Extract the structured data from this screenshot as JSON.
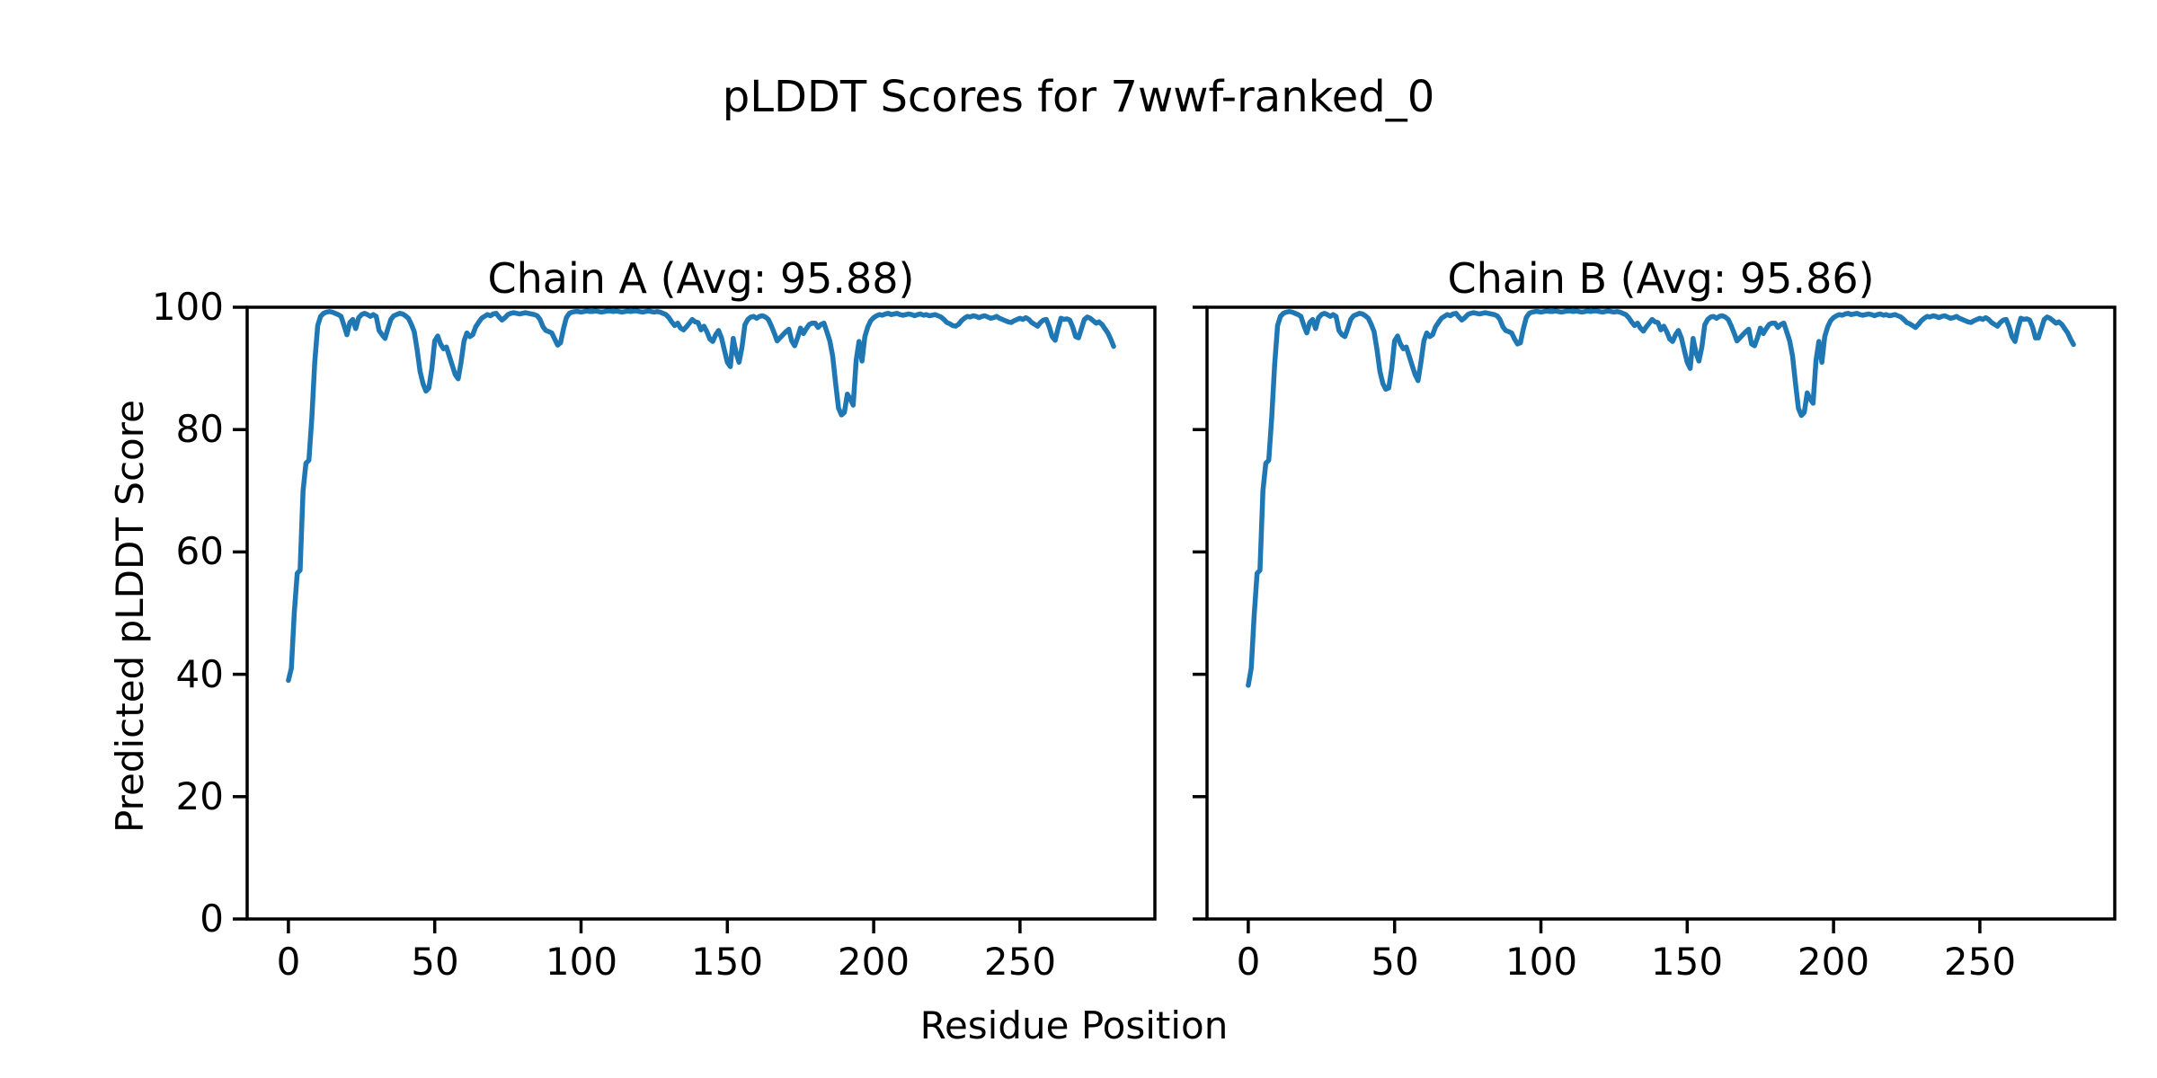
{
  "figure": {
    "suptitle": "pLDDT Scores for 7wwf-ranked_0",
    "xlabel": "Residue Position",
    "ylabel": "Predicted pLDDT Score",
    "text_color": "#000000",
    "background_color": "#ffffff",
    "line_color": "#1f77b4",
    "spine_color": "#000000"
  },
  "chart_data": [
    {
      "type": "line",
      "title": "Chain A (Avg: 95.88)",
      "avg": 95.88,
      "x_start": 0,
      "x_step": 1,
      "xlim": [
        -14.1,
        296.1
      ],
      "ylim": [
        0,
        100
      ],
      "x_ticks": [
        0,
        50,
        100,
        150,
        200,
        250
      ],
      "y_ticks": [
        0,
        20,
        40,
        60,
        80,
        100
      ],
      "show_y_tick_labels": true,
      "grid": false,
      "legend": false,
      "values": [
        39.0,
        41.0,
        50.0,
        56.5,
        57.0,
        70.0,
        74.5,
        75.0,
        82.0,
        91.0,
        97.0,
        98.5,
        99.0,
        99.2,
        99.3,
        99.2,
        99.0,
        98.8,
        98.5,
        97.0,
        95.5,
        97.5,
        98.0,
        96.5,
        98.3,
        98.8,
        99.0,
        98.8,
        98.5,
        98.8,
        98.5,
        96.2,
        95.5,
        94.9,
        96.5,
        98.0,
        98.6,
        98.8,
        99.0,
        98.9,
        98.6,
        98.2,
        97.2,
        96.0,
        93.0,
        89.5,
        87.5,
        86.3,
        86.8,
        90.0,
        94.5,
        95.3,
        94.0,
        93.2,
        93.5,
        92.0,
        90.5,
        89.0,
        88.3,
        91.0,
        94.5,
        95.8,
        95.2,
        95.5,
        96.8,
        97.5,
        98.2,
        98.5,
        98.8,
        98.6,
        98.9,
        99.0,
        98.4,
        97.9,
        98.3,
        98.8,
        99.0,
        99.1,
        99.0,
        98.9,
        99.0,
        99.1,
        99.0,
        98.9,
        98.8,
        98.6,
        98.0,
        96.8,
        96.2,
        96.0,
        95.8,
        94.8,
        93.8,
        94.2,
        96.5,
        98.3,
        99.0,
        99.2,
        99.3,
        99.3,
        99.2,
        99.3,
        99.4,
        99.3,
        99.3,
        99.4,
        99.3,
        99.2,
        99.3,
        99.4,
        99.4,
        99.3,
        99.4,
        99.3,
        99.2,
        99.3,
        99.4,
        99.3,
        99.4,
        99.4,
        99.3,
        99.2,
        99.3,
        99.4,
        99.3,
        99.2,
        99.3,
        99.2,
        99.0,
        98.8,
        98.3,
        97.6,
        97.0,
        97.4,
        96.6,
        96.3,
        96.8,
        97.4,
        98.0,
        97.6,
        97.5,
        96.3,
        96.9,
        96.0,
        94.8,
        94.4,
        95.5,
        96.2,
        95.0,
        93.0,
        91.0,
        90.3,
        94.9,
        92.5,
        91.0,
        93.5,
        97.1,
        98.0,
        98.4,
        98.5,
        98.2,
        98.5,
        98.6,
        98.4,
        98.0,
        97.0,
        95.8,
        94.5,
        95.0,
        95.5,
        96.0,
        96.4,
        94.5,
        93.7,
        95.0,
        96.6,
        95.7,
        96.5,
        97.2,
        97.4,
        97.4,
        96.7,
        97.2,
        97.4,
        96.0,
        94.5,
        92.0,
        87.5,
        83.5,
        82.4,
        82.8,
        85.8,
        85.0,
        84.0,
        91.3,
        94.4,
        91.2,
        95.2,
        96.8,
        97.8,
        98.3,
        98.6,
        98.8,
        98.7,
        98.9,
        99.0,
        98.8,
        98.9,
        99.0,
        98.8,
        98.7,
        98.8,
        98.9,
        98.8,
        98.6,
        98.8,
        98.9,
        98.7,
        98.8,
        98.6,
        98.7,
        98.8,
        98.6,
        98.4,
        98.0,
        97.5,
        97.3,
        97.0,
        96.9,
        97.2,
        97.8,
        98.2,
        98.5,
        98.4,
        98.6,
        98.5,
        98.3,
        98.5,
        98.6,
        98.4,
        98.2,
        98.3,
        98.5,
        98.2,
        98.0,
        97.8,
        97.6,
        97.5,
        97.8,
        98.0,
        98.2,
        98.0,
        98.3,
        98.0,
        97.5,
        97.2,
        96.9,
        97.5,
        97.9,
        98.0,
        96.8,
        95.2,
        94.6,
        96.5,
        98.2,
        98.0,
        98.1,
        97.9,
        96.8,
        95.2,
        95.0,
        96.5,
        98.0,
        98.4,
        98.2,
        97.8,
        97.4,
        97.6,
        97.2,
        96.5,
        95.8,
        94.8,
        93.6
      ]
    },
    {
      "type": "line",
      "title": "Chain B (Avg: 95.86)",
      "avg": 95.86,
      "x_start": 0,
      "x_step": 1,
      "xlim": [
        -14.1,
        296.1
      ],
      "ylim": [
        0,
        100
      ],
      "x_ticks": [
        0,
        50,
        100,
        150,
        200,
        250
      ],
      "y_ticks": [
        0,
        20,
        40,
        60,
        80,
        100
      ],
      "show_y_tick_labels": false,
      "grid": false,
      "legend": false,
      "values": [
        38.2,
        41.0,
        49.5,
        56.5,
        57.0,
        70.0,
        74.5,
        75.0,
        82.0,
        90.5,
        97.0,
        98.5,
        99.0,
        99.2,
        99.3,
        99.2,
        99.0,
        98.8,
        98.5,
        97.0,
        95.8,
        97.5,
        98.0,
        96.5,
        98.3,
        98.8,
        99.0,
        98.8,
        98.5,
        98.8,
        98.5,
        96.2,
        95.5,
        95.2,
        96.5,
        98.0,
        98.6,
        98.8,
        99.0,
        98.9,
        98.6,
        98.2,
        97.2,
        96.0,
        93.0,
        89.5,
        87.5,
        86.6,
        86.8,
        90.0,
        94.5,
        95.3,
        94.0,
        93.2,
        93.5,
        92.0,
        90.5,
        89.0,
        88.0,
        91.0,
        94.5,
        95.8,
        95.2,
        95.5,
        96.8,
        97.5,
        98.2,
        98.5,
        98.8,
        98.6,
        98.9,
        99.0,
        98.4,
        97.9,
        98.3,
        98.8,
        99.0,
        99.1,
        99.0,
        98.9,
        99.0,
        99.1,
        99.0,
        98.9,
        98.8,
        98.6,
        98.0,
        96.8,
        96.2,
        96.0,
        95.8,
        94.8,
        94.0,
        94.2,
        96.5,
        98.3,
        99.0,
        99.2,
        99.3,
        99.3,
        99.2,
        99.3,
        99.4,
        99.3,
        99.3,
        99.4,
        99.3,
        99.2,
        99.3,
        99.4,
        99.4,
        99.3,
        99.4,
        99.3,
        99.2,
        99.3,
        99.4,
        99.3,
        99.4,
        99.4,
        99.3,
        99.2,
        99.3,
        99.4,
        99.3,
        99.2,
        99.3,
        99.2,
        99.0,
        98.8,
        98.3,
        97.6,
        97.0,
        97.4,
        96.6,
        96.1,
        96.8,
        97.4,
        98.0,
        97.6,
        97.5,
        96.3,
        96.9,
        96.0,
        94.8,
        94.4,
        95.5,
        96.2,
        95.0,
        93.0,
        91.0,
        90.0,
        94.9,
        92.5,
        91.2,
        93.5,
        97.1,
        98.0,
        98.4,
        98.5,
        98.2,
        98.5,
        98.6,
        98.4,
        98.0,
        97.0,
        95.8,
        94.5,
        95.0,
        95.5,
        96.0,
        96.4,
        94.0,
        93.7,
        95.0,
        96.6,
        95.7,
        96.5,
        97.2,
        97.4,
        97.4,
        96.7,
        97.2,
        97.4,
        96.0,
        94.5,
        92.0,
        87.5,
        83.5,
        82.3,
        82.8,
        86.0,
        85.0,
        84.3,
        91.3,
        94.4,
        91.0,
        95.2,
        96.8,
        97.8,
        98.3,
        98.6,
        98.8,
        98.7,
        98.9,
        99.0,
        98.8,
        98.9,
        99.0,
        98.8,
        98.7,
        98.8,
        98.9,
        98.8,
        98.6,
        98.8,
        98.9,
        98.7,
        98.8,
        98.6,
        98.7,
        98.8,
        98.6,
        98.4,
        98.0,
        97.5,
        97.3,
        97.0,
        96.7,
        97.2,
        97.8,
        98.2,
        98.5,
        98.4,
        98.6,
        98.5,
        98.3,
        98.5,
        98.6,
        98.4,
        98.2,
        98.3,
        98.5,
        98.2,
        98.0,
        97.8,
        97.6,
        97.5,
        97.8,
        98.0,
        98.2,
        98.0,
        98.3,
        98.0,
        97.5,
        97.2,
        96.9,
        97.5,
        97.9,
        98.0,
        96.8,
        95.2,
        94.4,
        96.5,
        98.2,
        98.0,
        98.1,
        97.9,
        96.8,
        95.0,
        95.0,
        96.5,
        98.0,
        98.4,
        98.2,
        97.8,
        97.4,
        97.6,
        97.2,
        96.5,
        95.8,
        94.8,
        93.9
      ]
    }
  ]
}
